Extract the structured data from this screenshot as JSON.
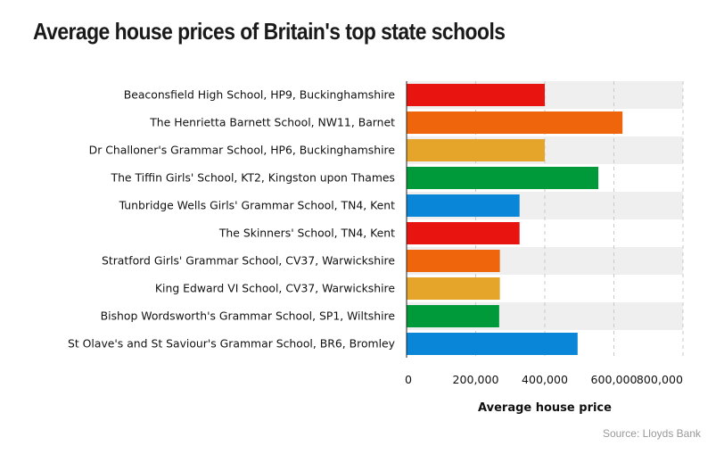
{
  "chart_data": {
    "type": "bar",
    "orientation": "horizontal",
    "title": "Average house prices of Britain's top state schools",
    "xlabel": "Average house price",
    "ylabel": "",
    "xlim": [
      0,
      800000
    ],
    "ticks": [
      0,
      200000,
      400000,
      600000,
      800000
    ],
    "tick_labels": [
      "0",
      "200,000",
      "400,000",
      "600,000",
      "800,000"
    ],
    "grid": true,
    "legend": "none",
    "categories": [
      "Beaconsfield High School, HP9, Buckinghamshire",
      "The Henrietta Barnett School, NW11, Barnet",
      "Dr Challoner's Grammar School, HP6, Buckinghamshire",
      "The Tiffin Girls' School, KT2, Kingston upon Thames",
      "Tunbridge Wells Girls' Grammar School, TN4, Kent",
      "The Skinners' School, TN4, Kent",
      "Stratford Girls' Grammar School, CV37, Warwickshire",
      "King Edward VI School, CV37, Warwickshire",
      "Bishop Wordsworth's Grammar School, SP1, Wiltshire",
      "St Olave's and St Saviour's Grammar School, BR6, Bromley"
    ],
    "values": [
      400000,
      625000,
      400000,
      555000,
      327000,
      327000,
      270000,
      270000,
      268000,
      495000
    ],
    "colors": [
      "#e8140f",
      "#ee650c",
      "#e5a52b",
      "#009a3a",
      "#0a86d8",
      "#e8140f",
      "#ee650c",
      "#e5a52b",
      "#009a3a",
      "#0a86d8"
    ],
    "source": "Source: Lloyds Bank"
  }
}
